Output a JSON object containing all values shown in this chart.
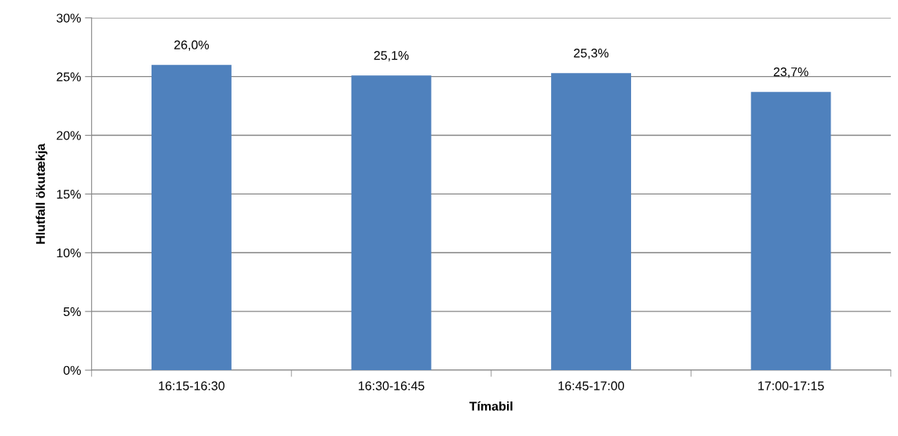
{
  "chart_data": {
    "type": "bar",
    "xlabel": "Tímabil",
    "ylabel": "Hlutfall ökutækja",
    "categories": [
      "16:15-16:30",
      "16:30-16:45",
      "16:45-17:00",
      "17:00-17:15"
    ],
    "values": [
      26.0,
      25.1,
      25.3,
      23.7
    ],
    "color": "#4f81bd",
    "value_labels": [
      "26,0%",
      "25,1%",
      "25,3%",
      "23,7%"
    ],
    "ylim": [
      0,
      30
    ],
    "yticks": [
      {
        "value": 0,
        "label": "0%"
      },
      {
        "value": 5,
        "label": "5%"
      },
      {
        "value": 10,
        "label": "10%"
      },
      {
        "value": 15,
        "label": "15%"
      },
      {
        "value": 20,
        "label": "20%"
      },
      {
        "value": 25,
        "label": "25%"
      },
      {
        "value": 30,
        "label": "30%"
      }
    ],
    "grid": "y",
    "legend": false
  }
}
